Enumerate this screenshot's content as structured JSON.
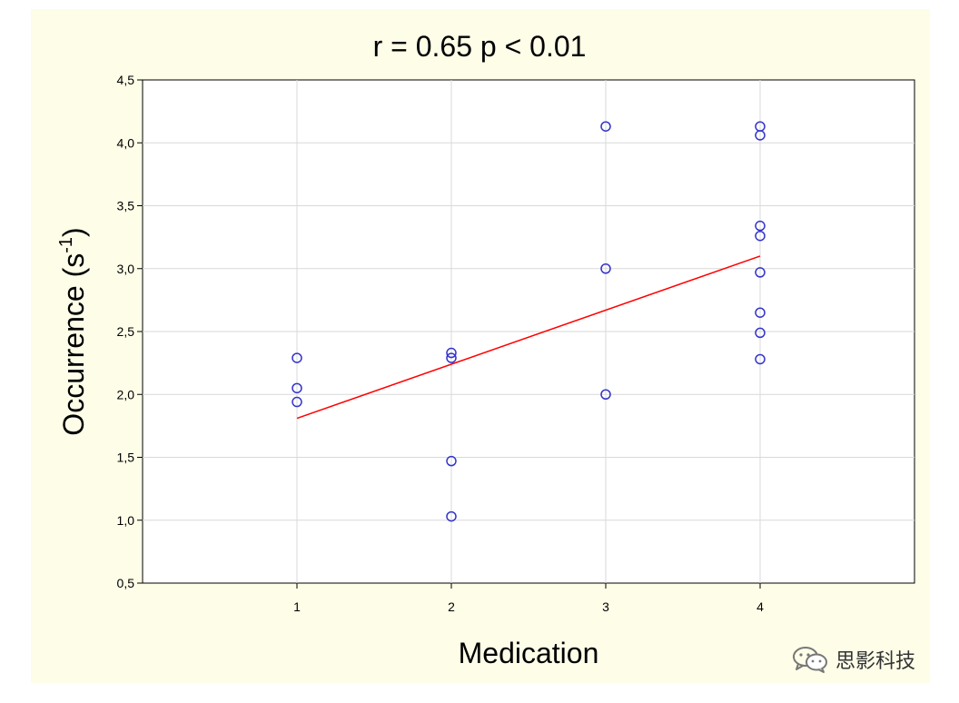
{
  "chart_data": {
    "type": "scatter",
    "title": "r = 0.65 p < 0.01",
    "xlabel": "Medication",
    "ylabel": "Occurrence (s",
    "ylabel_superscript": "-1",
    "ylabel_suffix": ")",
    "xlim": [
      0,
      5
    ],
    "ylim": [
      0.5,
      4.5
    ],
    "x_ticks": [
      1,
      2,
      3,
      4
    ],
    "x_tick_labels": [
      "1",
      "2",
      "3",
      "4"
    ],
    "y_ticks": [
      0.5,
      1.0,
      1.5,
      2.0,
      2.5,
      3.0,
      3.5,
      4.0,
      4.5
    ],
    "y_tick_labels": [
      "0,5",
      "1,0",
      "1,5",
      "2,0",
      "2,5",
      "3,0",
      "3,5",
      "4,0",
      "4,5"
    ],
    "grid": true,
    "points": [
      {
        "x": 1,
        "y": 2.29
      },
      {
        "x": 1,
        "y": 2.05
      },
      {
        "x": 1,
        "y": 1.94
      },
      {
        "x": 2,
        "y": 2.33
      },
      {
        "x": 2,
        "y": 2.29
      },
      {
        "x": 2,
        "y": 1.47
      },
      {
        "x": 2,
        "y": 1.03
      },
      {
        "x": 3,
        "y": 4.13
      },
      {
        "x": 3,
        "y": 3.0
      },
      {
        "x": 3,
        "y": 2.0
      },
      {
        "x": 4,
        "y": 4.13
      },
      {
        "x": 4,
        "y": 4.06
      },
      {
        "x": 4,
        "y": 3.34
      },
      {
        "x": 4,
        "y": 3.26
      },
      {
        "x": 4,
        "y": 2.97
      },
      {
        "x": 4,
        "y": 2.65
      },
      {
        "x": 4,
        "y": 2.49
      },
      {
        "x": 4,
        "y": 2.28
      }
    ],
    "fit_line": {
      "x": [
        1,
        4
      ],
      "y": [
        1.81,
        3.1
      ]
    },
    "colors": {
      "point": "#3333cc",
      "fit_line": "#ff0000",
      "grid": "#d9d9d9",
      "figure_background": "#fdfde8"
    }
  },
  "watermark": {
    "icon": "wechat-icon",
    "text": "思影科技"
  }
}
